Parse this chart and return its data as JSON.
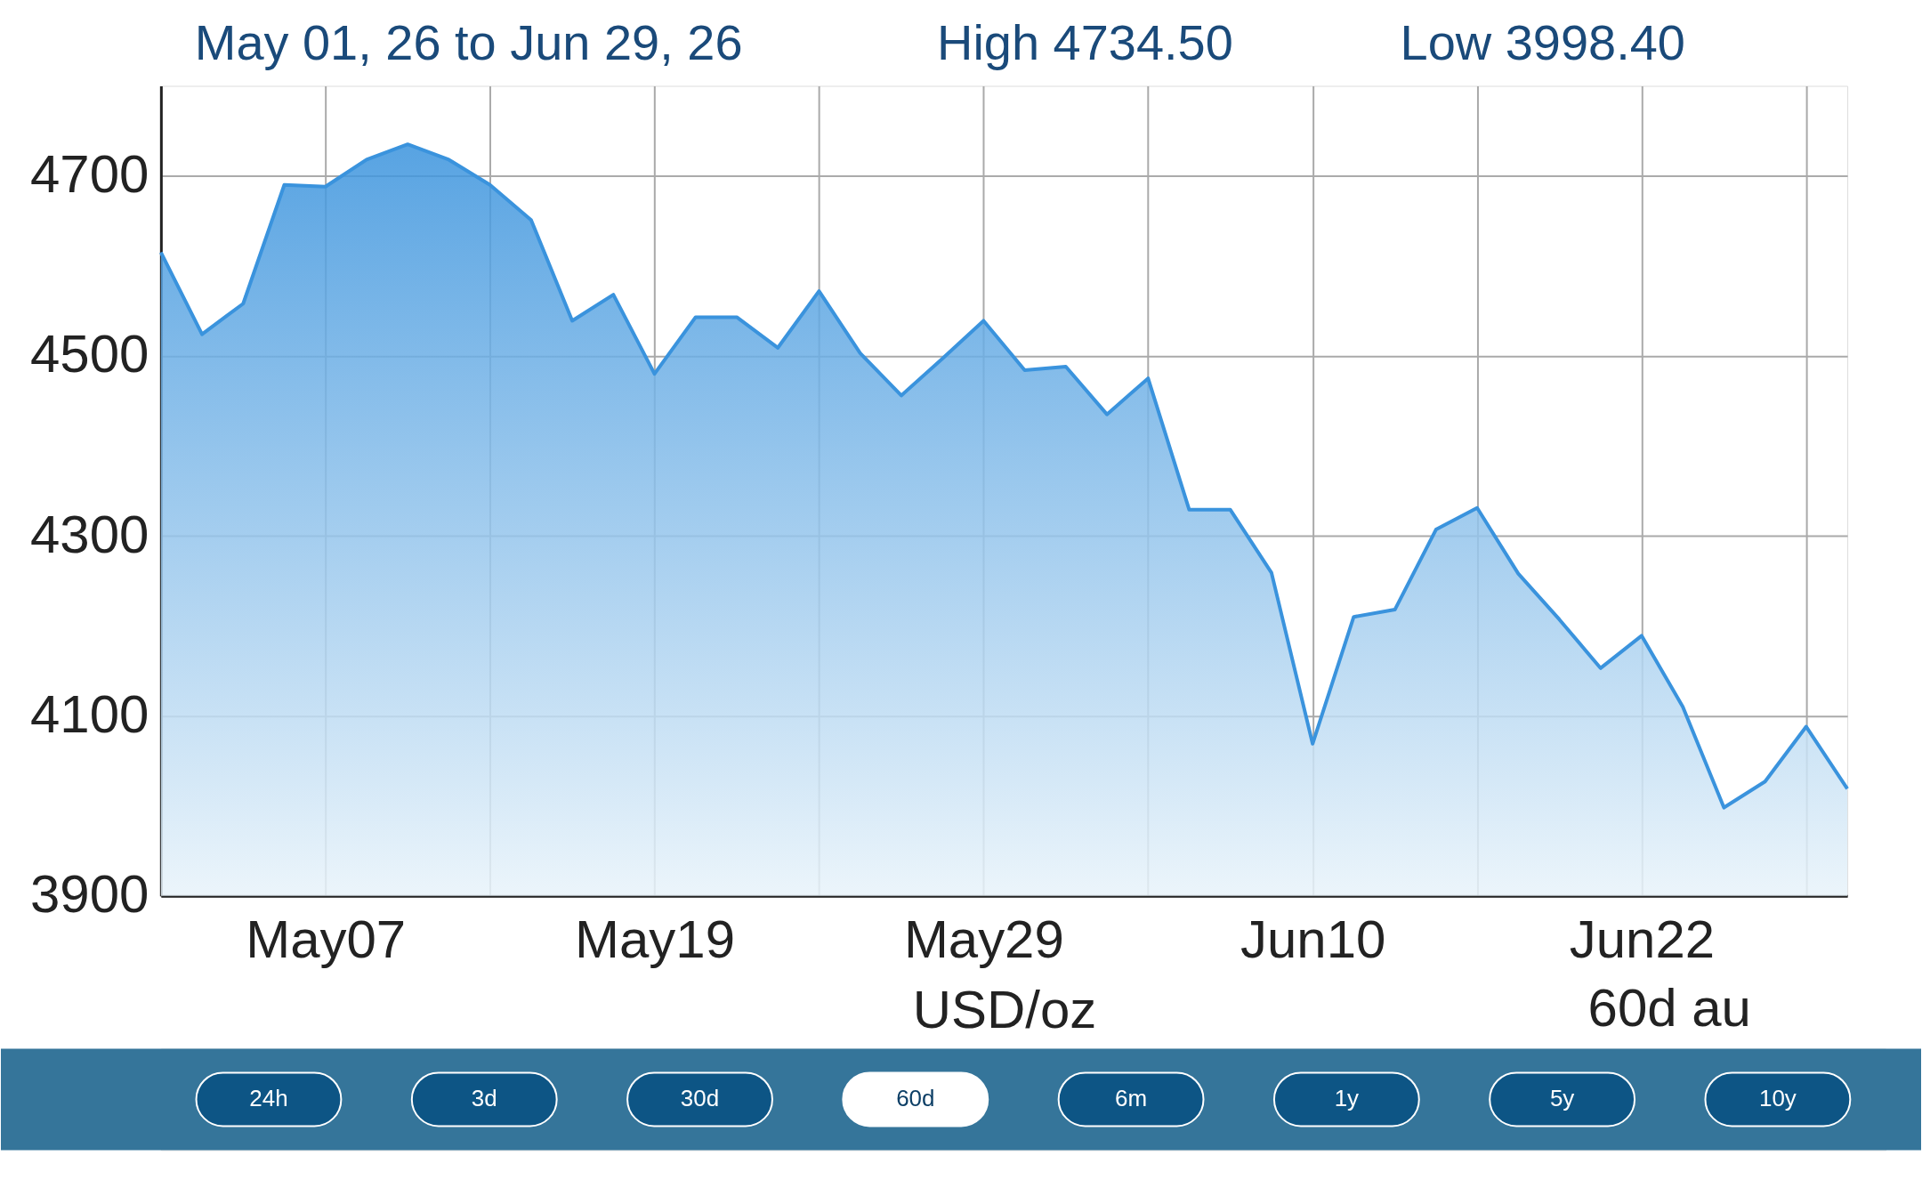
{
  "chart_data": [
    {
      "type": "area",
      "title": "May 01, 26 to Jun 29, 26",
      "annotations": [
        "High 4734.50",
        "Low  3998.40",
        "60d au"
      ],
      "xlabel": "USD/oz",
      "categories": [
        null,
        null,
        null,
        null,
        "May07",
        null,
        null,
        null,
        null,
        null,
        null,
        null,
        "May19",
        null,
        null,
        null,
        null,
        null,
        null,
        null,
        "May29",
        null,
        null,
        null,
        null,
        null,
        null,
        null,
        "Jun10",
        null,
        null,
        null,
        null,
        null,
        null,
        null,
        "Jun22",
        null,
        null,
        null,
        null,
        null
      ],
      "series": [
        {
          "color": "#3a93dd",
          "values": [
            4615,
            4524,
            4558,
            4690,
            4688,
            4718,
            4735,
            4718,
            4690,
            4651,
            4539,
            4568,
            4480,
            4543,
            4543,
            4509,
            4572,
            4503,
            4456,
            4497,
            4539,
            4484,
            4488,
            4435,
            4475,
            4329,
            4329,
            4259,
            4069,
            4210,
            4218,
            4307,
            4331,
            4258,
            4207,
            4153,
            4189,
            4110,
            3998,
            4027,
            4088,
            4019
          ]
        }
      ],
      "ylim": [
        3900,
        4800
      ],
      "yticks": [
        3900,
        4100,
        4300,
        4500,
        4700
      ],
      "grid": true
    },
    {
      "type": "other",
      "categories": [
        "24h",
        "3d",
        "30d",
        "60d",
        "6m",
        "1y",
        "5y",
        "10y"
      ],
      "colors": [
        "#0d5585",
        "#0d5585",
        "#0d5585",
        "#ffffff",
        "#0d5585",
        "#0d5585",
        "#0d5585",
        "#0d5585"
      ]
    }
  ]
}
